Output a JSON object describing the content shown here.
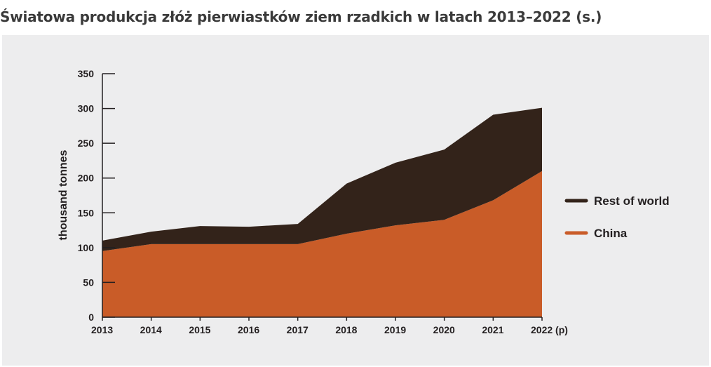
{
  "page": {
    "title": "Światowa produkcja złóż pierwiastków ziem rzadkich w latach 2013–2022 (s.)"
  },
  "chart_data": {
    "type": "area",
    "stacked": true,
    "title": "",
    "xlabel": "",
    "ylabel": "thousand tonnes",
    "categories": [
      "2013",
      "2014",
      "2015",
      "2016",
      "2017",
      "2018",
      "2019",
      "2020",
      "2021",
      "2022"
    ],
    "x_suffix_last": "(p)",
    "ylim": [
      0,
      350
    ],
    "yticks": [
      0,
      50,
      100,
      150,
      200,
      250,
      300,
      350
    ],
    "grid": false,
    "legend_position": "right",
    "series": [
      {
        "name": "China",
        "color": "#c95c28",
        "values": [
          95,
          105,
          105,
          105,
          105,
          120,
          132,
          140,
          168,
          210
        ]
      },
      {
        "name": "Rest of world",
        "color": "#33231a",
        "values": [
          15,
          18,
          26,
          25,
          29,
          72,
          90,
          101,
          123,
          91
        ]
      }
    ],
    "totals": [
      110,
      123,
      131,
      130,
      134,
      192,
      222,
      241,
      291,
      301
    ]
  }
}
